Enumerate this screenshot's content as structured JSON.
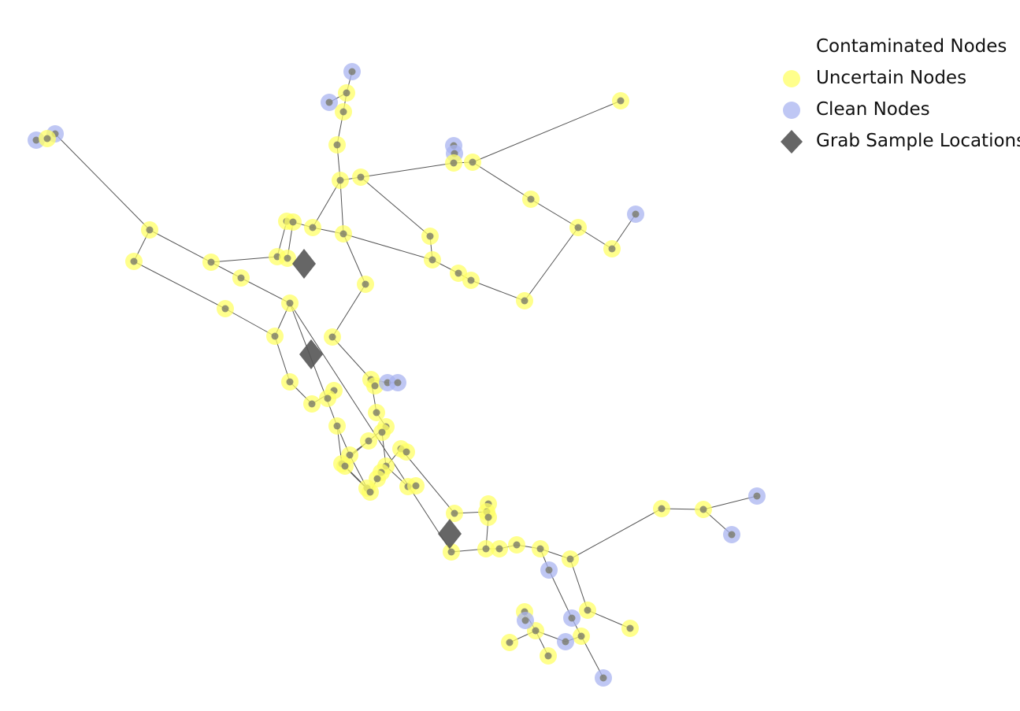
{
  "legend": {
    "contaminated": {
      "label": "Contaminated Nodes",
      "color": "#ff0000"
    },
    "uncertain": {
      "label": "Uncertain Nodes",
      "color": "#ffff66"
    },
    "clean": {
      "label": "Clean Nodes",
      "color": "#aab4f0"
    },
    "grab": {
      "label": "Grab Sample Locations",
      "color": "#555555"
    }
  },
  "colors": {
    "edge": "#555555",
    "node_core": "#7a7a6a",
    "tank": "#7aaa9a"
  }
}
